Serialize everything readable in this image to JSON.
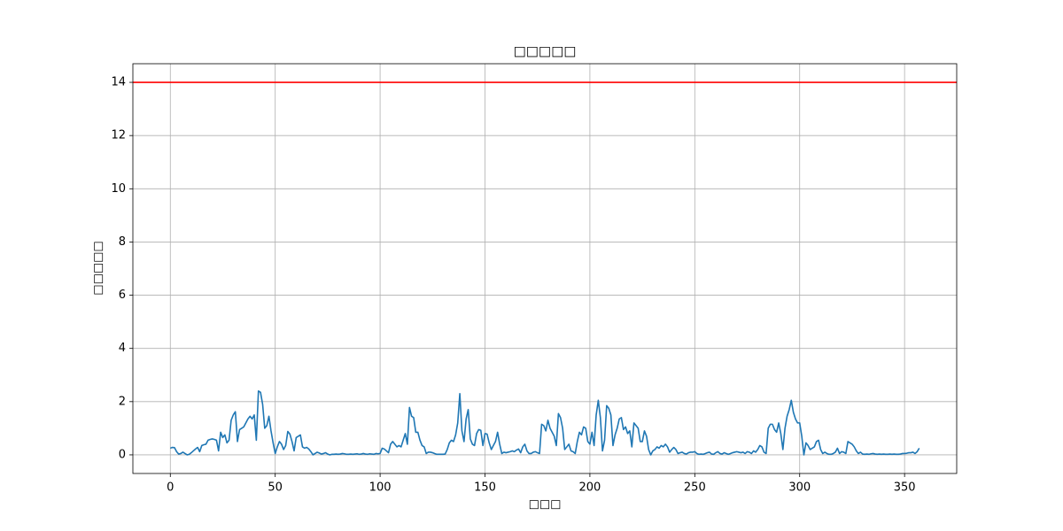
{
  "chart_data": {
    "type": "line",
    "title": "□□□□□",
    "xlabel": "□□□",
    "ylabel": "□□□□□",
    "xlim": [
      -17.85,
      374.85
    ],
    "xticks": [
      0,
      50,
      100,
      150,
      200,
      250,
      300,
      350
    ],
    "ylim": [
      -0.7,
      14.7
    ],
    "yticks": [
      0,
      2,
      4,
      6,
      8,
      10,
      12,
      14
    ],
    "grid": true,
    "hlines": [
      {
        "y": 14,
        "color": "#ff0000"
      }
    ],
    "series": [
      {
        "color": "#1f77b4",
        "values": [
          0.25,
          0.28,
          0.27,
          0.12,
          0.03,
          0.05,
          0.1,
          0.05,
          0,
          0.02,
          0.08,
          0.15,
          0.22,
          0.28,
          0.12,
          0.35,
          0.38,
          0.4,
          0.55,
          0.58,
          0.6,
          0.58,
          0.55,
          0.15,
          0.85,
          0.65,
          0.75,
          0.45,
          0.55,
          1.3,
          1.5,
          1.62,
          0.5,
          0.95,
          1,
          1.05,
          1.2,
          1.35,
          1.45,
          1.35,
          1.5,
          0.55,
          2.4,
          2.35,
          1.9,
          1,
          1.1,
          1.45,
          0.9,
          0.45,
          0.05,
          0.3,
          0.5,
          0.4,
          0.2,
          0.35,
          0.88,
          0.78,
          0.5,
          0.15,
          0.65,
          0.7,
          0.75,
          0.3,
          0.25,
          0.28,
          0.22,
          0.12,
          0,
          0.05,
          0.1,
          0.07,
          0.03,
          0.05,
          0.08,
          0.03,
          0,
          0.02,
          0.02,
          0.03,
          0.02,
          0.03,
          0.05,
          0.04,
          0.02,
          0.02,
          0.03,
          0.02,
          0.03,
          0.04,
          0.02,
          0.03,
          0.05,
          0.03,
          0.02,
          0.04,
          0.03,
          0.02,
          0.05,
          0.04,
          0.05,
          0.25,
          0.22,
          0.15,
          0.08,
          0.4,
          0.5,
          0.4,
          0.3,
          0.35,
          0.3,
          0.55,
          0.8,
          0.4,
          1.78,
          1.45,
          1.4,
          0.85,
          0.85,
          0.55,
          0.35,
          0.3,
          0.05,
          0.1,
          0.1,
          0.08,
          0.05,
          0.02,
          0.02,
          0.02,
          0.02,
          0.03,
          0.2,
          0.45,
          0.55,
          0.5,
          0.75,
          1.2,
          2.3,
          0.9,
          0.5,
          1.35,
          1.7,
          0.6,
          0.4,
          0.35,
          0.8,
          0.95,
          0.92,
          0.35,
          0.8,
          0.78,
          0.45,
          0.2,
          0.35,
          0.5,
          0.85,
          0.4,
          0.05,
          0.1,
          0.08,
          0.1,
          0.12,
          0.15,
          0.12,
          0.18,
          0.22,
          0.08,
          0.3,
          0.4,
          0.15,
          0.05,
          0.05,
          0.1,
          0.12,
          0.08,
          0.05,
          1.15,
          1.1,
          0.9,
          1.3,
          1,
          0.85,
          0.7,
          0.35,
          1.55,
          1.4,
          1,
          0.2,
          0.3,
          0.4,
          0.15,
          0.12,
          0.05,
          0.5,
          0.85,
          0.75,
          1.05,
          1,
          0.5,
          0.4,
          0.85,
          0.35,
          1.5,
          2.05,
          1.4,
          0.15,
          0.55,
          1.85,
          1.75,
          1.5,
          0.35,
          0.75,
          1,
          1.35,
          1.4,
          0.95,
          1.05,
          0.8,
          0.9,
          0.3,
          1.2,
          1.1,
          1,
          0.5,
          0.5,
          0.9,
          0.7,
          0.2,
          0,
          0.15,
          0.2,
          0.3,
          0.25,
          0.35,
          0.3,
          0.4,
          0.3,
          0.1,
          0.2,
          0.28,
          0.2,
          0.05,
          0.08,
          0.1,
          0.05,
          0.03,
          0.08,
          0.1,
          0.1,
          0.12,
          0.05,
          0.02,
          0.03,
          0.02,
          0.05,
          0.08,
          0.1,
          0.03,
          0.02,
          0.08,
          0.12,
          0.05,
          0.03,
          0.08,
          0.05,
          0.02,
          0.05,
          0.08,
          0.1,
          0.12,
          0.1,
          0.08,
          0.1,
          0.05,
          0.12,
          0.1,
          0.05,
          0.15,
          0.1,
          0.2,
          0.35,
          0.3,
          0.1,
          0.05,
          1,
          1.15,
          1.15,
          0.95,
          0.85,
          1.2,
          0.8,
          0.2,
          1,
          1.45,
          1.7,
          2.05,
          1.6,
          1.35,
          1.2,
          1.2,
          0.7,
          0,
          0.45,
          0.35,
          0.2,
          0.25,
          0.3,
          0.5,
          0.55,
          0.2,
          0.05,
          0.1,
          0.05,
          0.02,
          0.02,
          0.05,
          0.1,
          0.25,
          0.05,
          0.12,
          0.1,
          0.05,
          0.5,
          0.45,
          0.4,
          0.3,
          0.15,
          0.05,
          0.1,
          0.03,
          0.02,
          0.03,
          0.02,
          0.04,
          0.05,
          0.03,
          0.02,
          0.03,
          0.02,
          0.03,
          0.02,
          0.02,
          0.03,
          0.02,
          0.03,
          0.02,
          0.02,
          0.03,
          0.05,
          0.05,
          0.06,
          0.08,
          0.08,
          0.1,
          0.05,
          0.12,
          0.25
        ]
      }
    ]
  }
}
